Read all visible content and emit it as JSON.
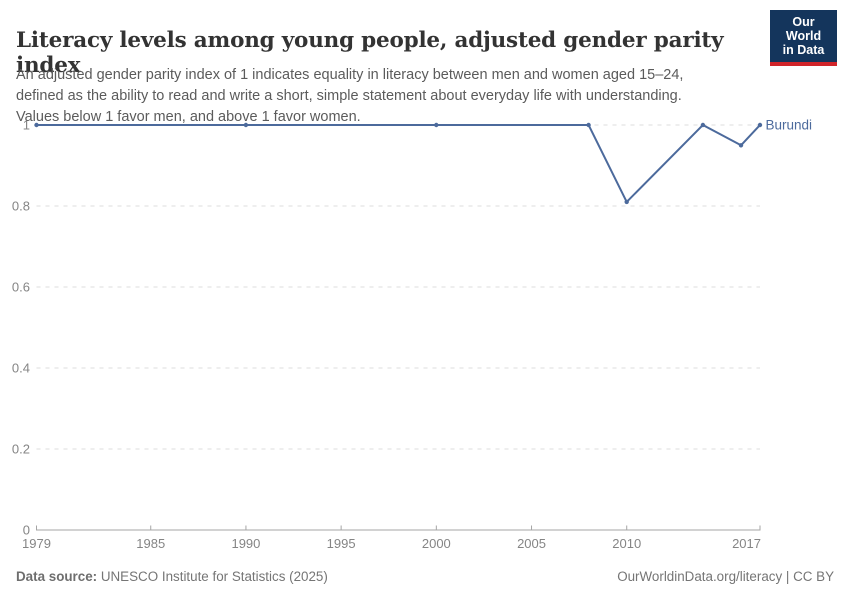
{
  "header": {
    "title": "Literacy levels among young people, adjusted gender parity index",
    "subtitle": "An adjusted gender parity index of 1 indicates equality in literacy between men and women aged 15–24, defined as the ability to read and write a short, simple statement about everyday life with understanding. Values below 1 favor men, and above 1 favor women.",
    "logo": {
      "line1": "Our World",
      "line2": "in Data",
      "bg_color": "#14355c",
      "accent_color": "#d1242a",
      "text_color": "#ffffff"
    }
  },
  "chart_data": {
    "type": "line",
    "title": "Literacy levels among young people, adjusted gender parity index",
    "entity_label": "Burundi",
    "series": [
      {
        "name": "Burundi",
        "color": "#4C6A9C",
        "points": [
          [
            1979,
            1
          ],
          [
            1990,
            1
          ],
          [
            2000,
            1
          ],
          [
            2008,
            1
          ],
          [
            2010,
            0.81
          ],
          [
            2014,
            1
          ],
          [
            2016,
            0.95
          ],
          [
            2017,
            1
          ]
        ]
      }
    ],
    "x_ticks": [
      1979,
      1985,
      1990,
      1995,
      2000,
      2005,
      2010,
      2017
    ],
    "y_ticks": [
      0,
      0.2,
      0.4,
      0.6,
      0.8,
      1
    ],
    "xlim": [
      1979,
      2017
    ],
    "ylim": [
      0,
      1
    ],
    "grid": "horizontal-dashed",
    "legend_position": "end-of-line",
    "gridline_color": "#dddddd",
    "axis_color": "#a5a5a5",
    "tick_label_color": "#858585"
  },
  "footer": {
    "datasource_label": "Data source:",
    "datasource_value": " UNESCO Institute for Statistics (2025)",
    "attribution": "OurWorldinData.org/literacy | CC BY"
  }
}
